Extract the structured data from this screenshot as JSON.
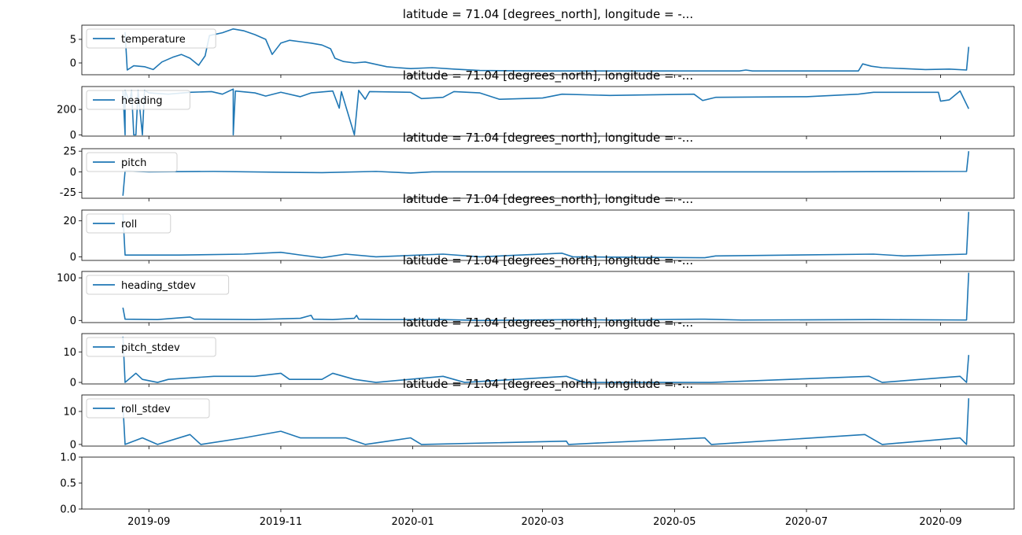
{
  "chart_data": {
    "type": "line",
    "line_color": "#1f77b4",
    "xlim": [
      "2019-08-01",
      "2020-10-05"
    ],
    "x_ticks": [
      "2019-09",
      "2019-11",
      "2020-01",
      "2020-03",
      "2020-05",
      "2020-07",
      "2020-09"
    ],
    "grid": false,
    "legend_placement": "upper-left",
    "panels": [
      {
        "title": "latitude = 71.04 [degrees_north], longitude = -...",
        "legend": "temperature",
        "ylim": [
          -2.5,
          8
        ],
        "yticks": [
          0,
          5
        ],
        "series": [
          [
            "2019-08-21",
            6.5
          ],
          [
            "2019-08-22",
            -1.5
          ],
          [
            "2019-08-25",
            -0.6
          ],
          [
            "2019-08-30",
            -0.8
          ],
          [
            "2019-09-03",
            -1.4
          ],
          [
            "2019-09-07",
            0.2
          ],
          [
            "2019-09-12",
            1.2
          ],
          [
            "2019-09-16",
            1.8
          ],
          [
            "2019-09-20",
            1.0
          ],
          [
            "2019-09-24",
            -0.5
          ],
          [
            "2019-09-27",
            1.5
          ],
          [
            "2019-09-29",
            5.8
          ],
          [
            "2019-10-05",
            6.4
          ],
          [
            "2019-10-10",
            7.2
          ],
          [
            "2019-10-15",
            6.8
          ],
          [
            "2019-10-20",
            6.0
          ],
          [
            "2019-10-25",
            5.0
          ],
          [
            "2019-10-28",
            1.8
          ],
          [
            "2019-11-01",
            4.2
          ],
          [
            "2019-11-05",
            4.8
          ],
          [
            "2019-11-10",
            4.5
          ],
          [
            "2019-11-15",
            4.2
          ],
          [
            "2019-11-20",
            3.8
          ],
          [
            "2019-11-24",
            3.0
          ],
          [
            "2019-11-26",
            1.0
          ],
          [
            "2019-11-30",
            0.3
          ],
          [
            "2019-12-05",
            0.0
          ],
          [
            "2019-12-10",
            0.2
          ],
          [
            "2019-12-15",
            -0.3
          ],
          [
            "2019-12-20",
            -0.8
          ],
          [
            "2019-12-25",
            -1.0
          ],
          [
            "2019-12-31",
            -1.2
          ],
          [
            "2020-01-10",
            -1.0
          ],
          [
            "2020-01-20",
            -1.3
          ],
          [
            "2020-02-01",
            -1.6
          ],
          [
            "2020-03-01",
            -1.7
          ],
          [
            "2020-04-01",
            -1.7
          ],
          [
            "2020-05-01",
            -1.7
          ],
          [
            "2020-05-31",
            -1.7
          ],
          [
            "2020-06-03",
            -1.5
          ],
          [
            "2020-06-06",
            -1.7
          ],
          [
            "2020-07-01",
            -1.7
          ],
          [
            "2020-07-25",
            -1.7
          ],
          [
            "2020-07-27",
            -0.2
          ],
          [
            "2020-07-31",
            -0.7
          ],
          [
            "2020-08-05",
            -1.0
          ],
          [
            "2020-08-15",
            -1.2
          ],
          [
            "2020-08-25",
            -1.4
          ],
          [
            "2020-09-05",
            -1.3
          ],
          [
            "2020-09-13",
            -1.5
          ],
          [
            "2020-09-14",
            3.4
          ]
        ]
      },
      {
        "title": "latitude = 71.04 [degrees_north], longitude = -...",
        "legend": "heading",
        "ylim": [
          -10,
          380
        ],
        "yticks": [
          0,
          200
        ],
        "series": [
          [
            "2019-08-20",
            350
          ],
          [
            "2019-08-21",
            0
          ],
          [
            "2019-08-21",
            350
          ],
          [
            "2019-08-23",
            260
          ],
          [
            "2019-08-24",
            350
          ],
          [
            "2019-08-25",
            0
          ],
          [
            "2019-08-26",
            0
          ],
          [
            "2019-08-27",
            350
          ],
          [
            "2019-08-29",
            0
          ],
          [
            "2019-08-30",
            350
          ],
          [
            "2019-09-01",
            330
          ],
          [
            "2019-09-10",
            320
          ],
          [
            "2019-09-20",
            335
          ],
          [
            "2019-09-30",
            340
          ],
          [
            "2019-10-05",
            320
          ],
          [
            "2019-10-10",
            360
          ],
          [
            "2019-10-10",
            0
          ],
          [
            "2019-10-11",
            345
          ],
          [
            "2019-10-20",
            330
          ],
          [
            "2019-10-25",
            305
          ],
          [
            "2019-11-01",
            335
          ],
          [
            "2019-11-10",
            300
          ],
          [
            "2019-11-15",
            330
          ],
          [
            "2019-11-25",
            345
          ],
          [
            "2019-11-28",
            210
          ],
          [
            "2019-11-29",
            340
          ],
          [
            "2019-12-05",
            0
          ],
          [
            "2019-12-07",
            350
          ],
          [
            "2019-12-10",
            280
          ],
          [
            "2019-12-12",
            340
          ],
          [
            "2019-12-31",
            335
          ],
          [
            "2020-01-05",
            285
          ],
          [
            "2020-01-15",
            295
          ],
          [
            "2020-01-20",
            340
          ],
          [
            "2020-02-01",
            330
          ],
          [
            "2020-02-10",
            280
          ],
          [
            "2020-03-01",
            290
          ],
          [
            "2020-03-10",
            320
          ],
          [
            "2020-04-01",
            310
          ],
          [
            "2020-05-10",
            320
          ],
          [
            "2020-05-14",
            270
          ],
          [
            "2020-05-20",
            295
          ],
          [
            "2020-07-01",
            300
          ],
          [
            "2020-07-25",
            320
          ],
          [
            "2020-08-01",
            335
          ],
          [
            "2020-08-31",
            335
          ],
          [
            "2020-09-01",
            265
          ],
          [
            "2020-09-05",
            275
          ],
          [
            "2020-09-10",
            345
          ],
          [
            "2020-09-14",
            205
          ]
        ]
      },
      {
        "title": "latitude = 71.04 [degrees_north], longitude = -...",
        "legend": "pitch",
        "ylim": [
          -32,
          28
        ],
        "yticks": [
          -25,
          0,
          25
        ],
        "series": [
          [
            "2019-08-20",
            -29
          ],
          [
            "2019-08-21",
            1
          ],
          [
            "2019-09-01",
            0
          ],
          [
            "2019-10-01",
            0.5
          ],
          [
            "2019-11-01",
            -0.5
          ],
          [
            "2019-11-20",
            -1
          ],
          [
            "2019-12-15",
            0.5
          ],
          [
            "2019-12-31",
            -1.5
          ],
          [
            "2020-01-10",
            0
          ],
          [
            "2020-03-01",
            0
          ],
          [
            "2020-05-01",
            0
          ],
          [
            "2020-07-01",
            0
          ],
          [
            "2020-09-13",
            0.5
          ],
          [
            "2020-09-14",
            25
          ]
        ]
      },
      {
        "title": "latitude = 71.04 [degrees_north], longitude = -...",
        "legend": "roll",
        "ylim": [
          -2,
          26
        ],
        "yticks": [
          0,
          20
        ],
        "series": [
          [
            "2019-08-20",
            24
          ],
          [
            "2019-08-21",
            1
          ],
          [
            "2019-09-15",
            1
          ],
          [
            "2019-10-15",
            1.5
          ],
          [
            "2019-11-01",
            2.5
          ],
          [
            "2019-11-10",
            1
          ],
          [
            "2019-11-20",
            -0.5
          ],
          [
            "2019-12-01",
            1.5
          ],
          [
            "2019-12-15",
            0
          ],
          [
            "2020-01-15",
            1.5
          ],
          [
            "2020-02-01",
            0
          ],
          [
            "2020-03-10",
            2
          ],
          [
            "2020-03-15",
            0
          ],
          [
            "2020-05-15",
            -0.5
          ],
          [
            "2020-05-20",
            0.5
          ],
          [
            "2020-08-01",
            1.5
          ],
          [
            "2020-08-15",
            0.5
          ],
          [
            "2020-09-13",
            1.5
          ],
          [
            "2020-09-14",
            25
          ]
        ]
      },
      {
        "title": "latitude = 71.04 [degrees_north], longitude = -...",
        "legend": "heading_stdev",
        "ylim": [
          -5,
          115
        ],
        "yticks": [
          0,
          100
        ],
        "series": [
          [
            "2019-08-20",
            30
          ],
          [
            "2019-08-21",
            3
          ],
          [
            "2019-09-05",
            2
          ],
          [
            "2019-09-20",
            8
          ],
          [
            "2019-09-22",
            3
          ],
          [
            "2019-10-20",
            2
          ],
          [
            "2019-11-10",
            5
          ],
          [
            "2019-11-15",
            12
          ],
          [
            "2019-11-16",
            3
          ],
          [
            "2019-11-25",
            2
          ],
          [
            "2019-12-05",
            5
          ],
          [
            "2019-12-06",
            12
          ],
          [
            "2019-12-07",
            3
          ],
          [
            "2019-12-20",
            2
          ],
          [
            "2020-01-15",
            2
          ],
          [
            "2020-02-01",
            0
          ],
          [
            "2020-03-15",
            2
          ],
          [
            "2020-04-01",
            1
          ],
          [
            "2020-05-15",
            3
          ],
          [
            "2020-06-01",
            1
          ],
          [
            "2020-08-01",
            2
          ],
          [
            "2020-09-13",
            1
          ],
          [
            "2020-09-14",
            112
          ]
        ]
      },
      {
        "title": "latitude = 71.04 [degrees_north], longitude = -...",
        "legend": "pitch_stdev",
        "ylim": [
          -0.5,
          16
        ],
        "yticks": [
          0,
          10
        ],
        "series": [
          [
            "2019-08-20",
            15
          ],
          [
            "2019-08-21",
            0
          ],
          [
            "2019-08-26",
            3
          ],
          [
            "2019-08-29",
            1
          ],
          [
            "2019-09-05",
            0
          ],
          [
            "2019-09-10",
            1
          ],
          [
            "2019-10-01",
            2
          ],
          [
            "2019-10-20",
            2
          ],
          [
            "2019-11-01",
            3
          ],
          [
            "2019-11-05",
            1
          ],
          [
            "2019-11-20",
            1
          ],
          [
            "2019-11-25",
            3
          ],
          [
            "2019-12-05",
            1
          ],
          [
            "2019-12-15",
            0
          ],
          [
            "2020-01-15",
            2
          ],
          [
            "2020-01-25",
            0
          ],
          [
            "2020-03-12",
            2
          ],
          [
            "2020-03-20",
            0
          ],
          [
            "2020-05-18",
            0
          ],
          [
            "2020-07-30",
            2
          ],
          [
            "2020-08-05",
            0
          ],
          [
            "2020-09-10",
            2
          ],
          [
            "2020-09-13",
            0
          ],
          [
            "2020-09-14",
            9
          ]
        ]
      },
      {
        "title": "latitude = 71.04 [degrees_north], longitude = -...",
        "legend": "roll_stdev",
        "ylim": [
          -0.5,
          15
        ],
        "yticks": [
          0,
          10
        ],
        "series": [
          [
            "2019-08-20",
            12
          ],
          [
            "2019-08-21",
            0
          ],
          [
            "2019-08-29",
            2
          ],
          [
            "2019-09-05",
            0
          ],
          [
            "2019-09-20",
            3
          ],
          [
            "2019-09-25",
            0
          ],
          [
            "2019-10-15",
            2
          ],
          [
            "2019-11-01",
            4
          ],
          [
            "2019-11-10",
            2
          ],
          [
            "2019-12-01",
            2
          ],
          [
            "2019-12-10",
            0
          ],
          [
            "2019-12-31",
            2
          ],
          [
            "2020-01-05",
            0
          ],
          [
            "2020-03-12",
            1
          ],
          [
            "2020-03-13",
            0
          ],
          [
            "2020-05-15",
            2
          ],
          [
            "2020-05-18",
            0
          ],
          [
            "2020-07-28",
            3
          ],
          [
            "2020-08-05",
            0
          ],
          [
            "2020-09-10",
            2
          ],
          [
            "2020-09-13",
            0
          ],
          [
            "2020-09-14",
            14
          ]
        ]
      },
      {
        "title": "",
        "legend": "",
        "ylim": [
          0,
          1
        ],
        "yticks": [
          0.0,
          0.5,
          1.0
        ],
        "ytick_labels": [
          "0.0",
          "0.5",
          "1.0"
        ],
        "series": []
      }
    ]
  }
}
